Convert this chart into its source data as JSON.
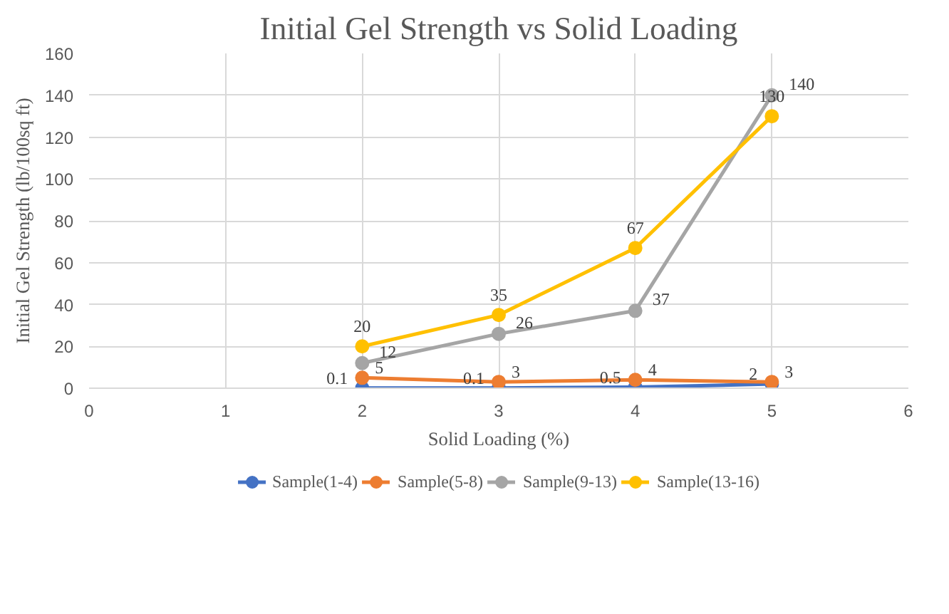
{
  "chart_data": {
    "type": "line",
    "title": "Initial Gel Strength vs Solid Loading",
    "xlabel": "Solid Loading (%)",
    "ylabel": "Initial Gel Strength (lb/100sq ft)",
    "x": [
      2,
      3,
      4,
      5
    ],
    "series": [
      {
        "name": "Sample(1-4)",
        "color": "#4472c4",
        "values": [
          0.1,
          0.1,
          0.5,
          2
        ]
      },
      {
        "name": "Sample(5-8)",
        "color": "#ed7d31",
        "values": [
          5,
          3,
          4,
          3
        ]
      },
      {
        "name": "Sample(9-13)",
        "color": "#a5a5a5",
        "values": [
          12,
          26,
          37,
          140
        ]
      },
      {
        "name": "Sample(13-16)",
        "color": "#ffc000",
        "values": [
          20,
          35,
          67,
          130
        ]
      }
    ],
    "xlim": [
      0,
      6
    ],
    "xticks": [
      0,
      1,
      2,
      3,
      4,
      5,
      6
    ],
    "ylim": [
      0,
      160
    ],
    "yticks": [
      0,
      20,
      40,
      60,
      80,
      100,
      120,
      140,
      160
    ],
    "grid": true,
    "legend": "bottom",
    "marker": "circle",
    "line_style": "solid",
    "data_labels": true
  }
}
